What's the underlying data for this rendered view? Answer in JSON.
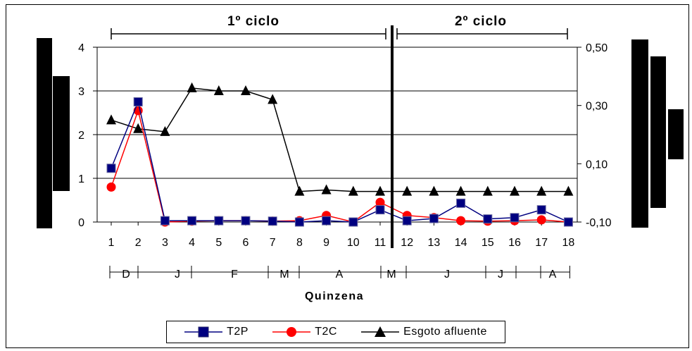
{
  "chart_data": {
    "type": "line",
    "x": [
      1,
      2,
      3,
      4,
      5,
      6,
      7,
      8,
      9,
      10,
      11,
      12,
      13,
      14,
      15,
      16,
      17,
      18
    ],
    "xlabel": "Quinzena",
    "month_labels": [
      "D",
      "J",
      "F",
      "M",
      "A",
      "M",
      "J",
      "J",
      "A"
    ],
    "cycles": [
      {
        "label": "1º ciclo",
        "from": 1,
        "to": 11
      },
      {
        "label": "2º ciclo",
        "from": 12,
        "to": 18
      }
    ],
    "y_left": {
      "ticks": [
        "0",
        "1",
        "2",
        "3",
        "4"
      ],
      "ylim": [
        0,
        4
      ]
    },
    "y_right": {
      "ticks": [
        "-0,10",
        "0,10",
        "0,30",
        "0,50"
      ],
      "ylim": [
        -0.1,
        0.5
      ]
    },
    "grid": true,
    "legend_position": "bottom",
    "series": [
      {
        "name": "T2P",
        "color": "#000080",
        "marker": "square",
        "axis": "left",
        "values": [
          1.23,
          2.75,
          0.03,
          0.03,
          0.03,
          0.03,
          0.02,
          0.0,
          0.03,
          0.0,
          0.28,
          0.03,
          0.08,
          0.43,
          0.07,
          0.1,
          0.28,
          0.0
        ]
      },
      {
        "name": "T2C",
        "color": "#ff0000",
        "marker": "circle",
        "axis": "left",
        "values": [
          0.8,
          2.55,
          0.0,
          0.02,
          0.03,
          0.03,
          0.02,
          0.03,
          0.15,
          0.0,
          0.45,
          0.15,
          0.1,
          0.03,
          0.02,
          0.03,
          0.05,
          0.0
        ]
      },
      {
        "name": "Esgoto afluente",
        "color": "#000000",
        "marker": "triangle",
        "axis": "right",
        "values": [
          0.25,
          0.22,
          0.21,
          0.36,
          0.35,
          0.35,
          0.32,
          0.005,
          0.01,
          0.005,
          0.005,
          0.005,
          0.005,
          0.005,
          0.005,
          0.005,
          0.005,
          0.005
        ]
      }
    ]
  },
  "colors": {
    "t2p": "#000080",
    "t2c": "#ff0000",
    "esgoto": "#000000",
    "grid": "#000000"
  }
}
